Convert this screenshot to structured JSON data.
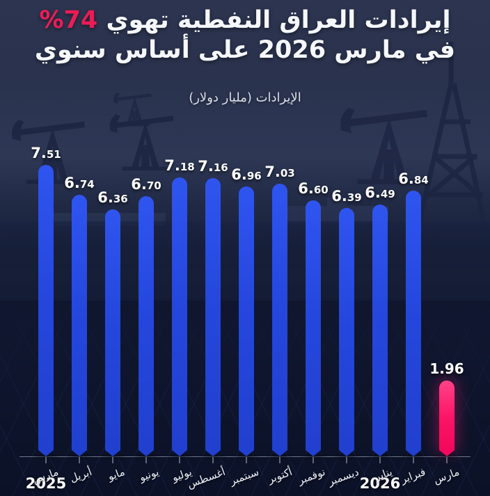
{
  "title": {
    "line1_text": "إيرادات العراق النفطية تهوي",
    "line1_percent": "%74",
    "line2": "في مارس 2026 على أساس سنوي",
    "percent_color": "#ed1b55"
  },
  "subtitle": "الإيرادات (مليار دولار)",
  "chart_data": {
    "type": "bar",
    "title": "إيرادات العراق النفطية تهوي %74 في مارس 2026 على أساس سنوي",
    "ylabel": "الإيرادات (مليار دولار)",
    "categories": [
      "مارس",
      "أبريل",
      "مايو",
      "يونيو",
      "يوليو",
      "أغسطس",
      "سبتمبر",
      "أكتوبر",
      "نوفمبر",
      "ديسمبر",
      "يناير",
      "فبراير",
      "مارس"
    ],
    "values": [
      7.51,
      6.74,
      6.36,
      6.7,
      7.18,
      7.16,
      6.96,
      7.03,
      6.6,
      6.39,
      6.49,
      6.84,
      1.96
    ],
    "value_labels": [
      "7.51",
      "6.74",
      "6.36",
      "6.70",
      "7.18",
      "7.16",
      "6.96",
      "7.03",
      "6.60",
      "6.39",
      "6.49",
      "6.84",
      "1.96"
    ],
    "highlight_index": 12,
    "bar_color": "#2547dd",
    "highlight_color": "#fb1466",
    "ylim": [
      0,
      8
    ],
    "grid": false,
    "year_markers": [
      {
        "label": "2025",
        "index": 0
      },
      {
        "label": "2026",
        "index": 10
      }
    ]
  }
}
